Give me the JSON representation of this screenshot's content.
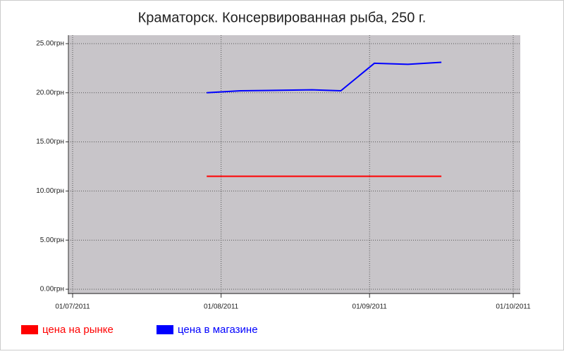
{
  "chart_data": {
    "type": "line",
    "title": "Краматорск. Консервированная рыба, 250 г.",
    "x": [
      "29/07/2011",
      "05/08/2011",
      "20/08/2011",
      "26/08/2011",
      "02/09/2011",
      "09/09/2011",
      "16/09/2011"
    ],
    "series": [
      {
        "name": "цена на рынке",
        "color": "#ff0000",
        "values": [
          11.5,
          11.5,
          11.5,
          11.5,
          11.5,
          11.5,
          11.5
        ]
      },
      {
        "name": "цена в магазине",
        "color": "#0000ff",
        "values": [
          20.0,
          20.2,
          20.3,
          20.2,
          23.0,
          22.9,
          23.1
        ]
      }
    ],
    "xlim": [
      "01/07/2011",
      "01/10/2011"
    ],
    "xticks": [
      "01/07/2011",
      "01/08/2011",
      "01/09/2011",
      "01/10/2011"
    ],
    "ylim": [
      0,
      25
    ],
    "yticks": [
      {
        "value": 0,
        "label": "0.00грн"
      },
      {
        "value": 5,
        "label": "5.00грн"
      },
      {
        "value": 10,
        "label": "10.00грн"
      },
      {
        "value": 15,
        "label": "15.00грн"
      },
      {
        "value": 20,
        "label": "20.00грн"
      },
      {
        "value": 25,
        "label": "25.00грн"
      }
    ],
    "grid": true
  }
}
